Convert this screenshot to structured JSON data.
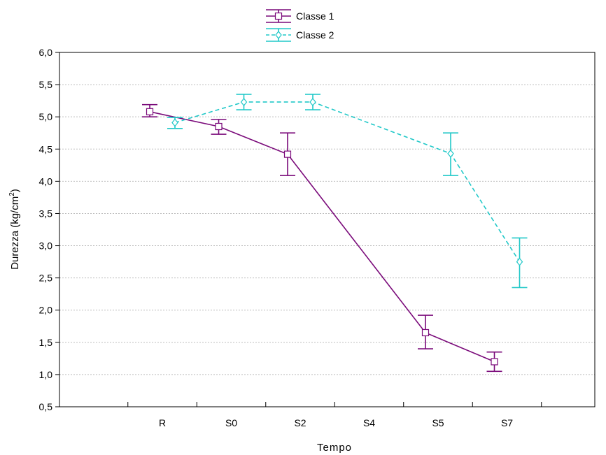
{
  "chart_data": {
    "type": "line",
    "title": "",
    "xlabel": "Tempo",
    "ylabel_main": "Durezza (kg/cm",
    "ylabel_sup": "2",
    "ylabel_close": ")",
    "categories": [
      "R",
      "S0",
      "S2",
      "S4",
      "S5",
      "S7"
    ],
    "ylim": [
      0.5,
      6.0
    ],
    "yticks": [
      0.5,
      1.0,
      1.5,
      2.0,
      2.5,
      3.0,
      3.5,
      4.0,
      4.5,
      5.0,
      5.5,
      6.0
    ],
    "ytick_labels": [
      "0,5",
      "1,0",
      "1,5",
      "2,0",
      "2,5",
      "3,0",
      "3,5",
      "4,0",
      "4,5",
      "5,0",
      "5,5",
      "6,0"
    ],
    "grid": true,
    "legend_position": "top-center",
    "series": [
      {
        "name": "Classe 1",
        "color": "#7a0a7a",
        "line_style": "solid",
        "marker": "square",
        "points": [
          {
            "x": "R",
            "y": 5.08,
            "err_low": 5.0,
            "err_high": 5.19
          },
          {
            "x": "S0",
            "y": 4.85,
            "err_low": 4.73,
            "err_high": 4.96
          },
          {
            "x": "S2",
            "y": 4.42,
            "err_low": 4.09,
            "err_high": 4.75
          },
          {
            "x": "S5",
            "y": 1.65,
            "err_low": 1.4,
            "err_high": 1.92
          },
          {
            "x": "S7",
            "y": 1.2,
            "err_low": 1.05,
            "err_high": 1.35
          }
        ]
      },
      {
        "name": "Classe 2",
        "color": "#20c8c8",
        "line_style": "dashed",
        "marker": "diamond",
        "points": [
          {
            "x": "R",
            "y": 4.91,
            "err_low": 4.82,
            "err_high": 4.99
          },
          {
            "x": "S0",
            "y": 5.23,
            "err_low": 5.11,
            "err_high": 5.35
          },
          {
            "x": "S2",
            "y": 5.23,
            "err_low": 5.11,
            "err_high": 5.35
          },
          {
            "x": "S5",
            "y": 4.43,
            "err_low": 4.09,
            "err_high": 4.75
          },
          {
            "x": "S7",
            "y": 2.75,
            "err_low": 2.35,
            "err_high": 3.12
          }
        ]
      }
    ]
  }
}
